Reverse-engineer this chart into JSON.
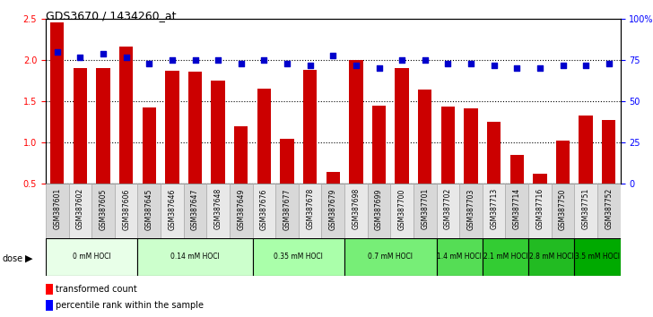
{
  "title": "GDS3670 / 1434260_at",
  "samples": [
    "GSM387601",
    "GSM387602",
    "GSM387605",
    "GSM387606",
    "GSM387645",
    "GSM387646",
    "GSM387647",
    "GSM387648",
    "GSM387649",
    "GSM387676",
    "GSM387677",
    "GSM387678",
    "GSM387679",
    "GSM387698",
    "GSM387699",
    "GSM387700",
    "GSM387701",
    "GSM387702",
    "GSM387703",
    "GSM387713",
    "GSM387714",
    "GSM387716",
    "GSM387750",
    "GSM387751",
    "GSM387752"
  ],
  "bar_values": [
    2.46,
    1.9,
    1.9,
    2.17,
    1.43,
    1.87,
    1.86,
    1.75,
    1.2,
    1.65,
    1.05,
    1.88,
    0.65,
    2.0,
    1.45,
    1.9,
    1.64,
    1.44,
    1.42,
    1.25,
    0.85,
    0.62,
    1.03,
    1.33,
    1.27
  ],
  "dot_values": [
    80,
    77,
    79,
    77,
    73,
    75,
    75,
    75,
    73,
    75,
    73,
    72,
    78,
    72,
    70,
    75,
    75,
    73,
    73,
    72,
    70,
    70,
    72,
    72,
    73
  ],
  "dose_groups": [
    {
      "label": "0 mM HOCl",
      "start": 0,
      "end": 4,
      "color": "#ccffcc"
    },
    {
      "label": "0.14 mM HOCl",
      "start": 4,
      "end": 9,
      "color": "#aaffaa"
    },
    {
      "label": "0.35 mM HOCl",
      "start": 9,
      "end": 13,
      "color": "#88ff88"
    },
    {
      "label": "0.7 mM HOCl",
      "start": 13,
      "end": 17,
      "color": "#55ee55"
    },
    {
      "label": "1.4 mM HOCl",
      "start": 17,
      "end": 19,
      "color": "#33dd33"
    },
    {
      "label": "2.1 mM HOCl",
      "start": 19,
      "end": 21,
      "color": "#22cc22"
    },
    {
      "label": "2.8 mM HOCl",
      "start": 21,
      "end": 23,
      "color": "#11bb11"
    },
    {
      "label": "3.5 mM HOCl",
      "start": 23,
      "end": 25,
      "color": "#00aa00"
    }
  ],
  "bar_color": "#cc0000",
  "dot_color": "#0000cc",
  "ylim_left": [
    0.5,
    2.5
  ],
  "ylim_right": [
    0,
    100
  ],
  "yticks_left": [
    0.5,
    1.0,
    1.5,
    2.0,
    2.5
  ],
  "yticks_right": [
    0,
    25,
    50,
    75,
    100
  ],
  "ytick_labels_right": [
    "0",
    "25",
    "50",
    "75",
    "100%"
  ],
  "background_color": "#ffffff",
  "grid_color": "#000000"
}
